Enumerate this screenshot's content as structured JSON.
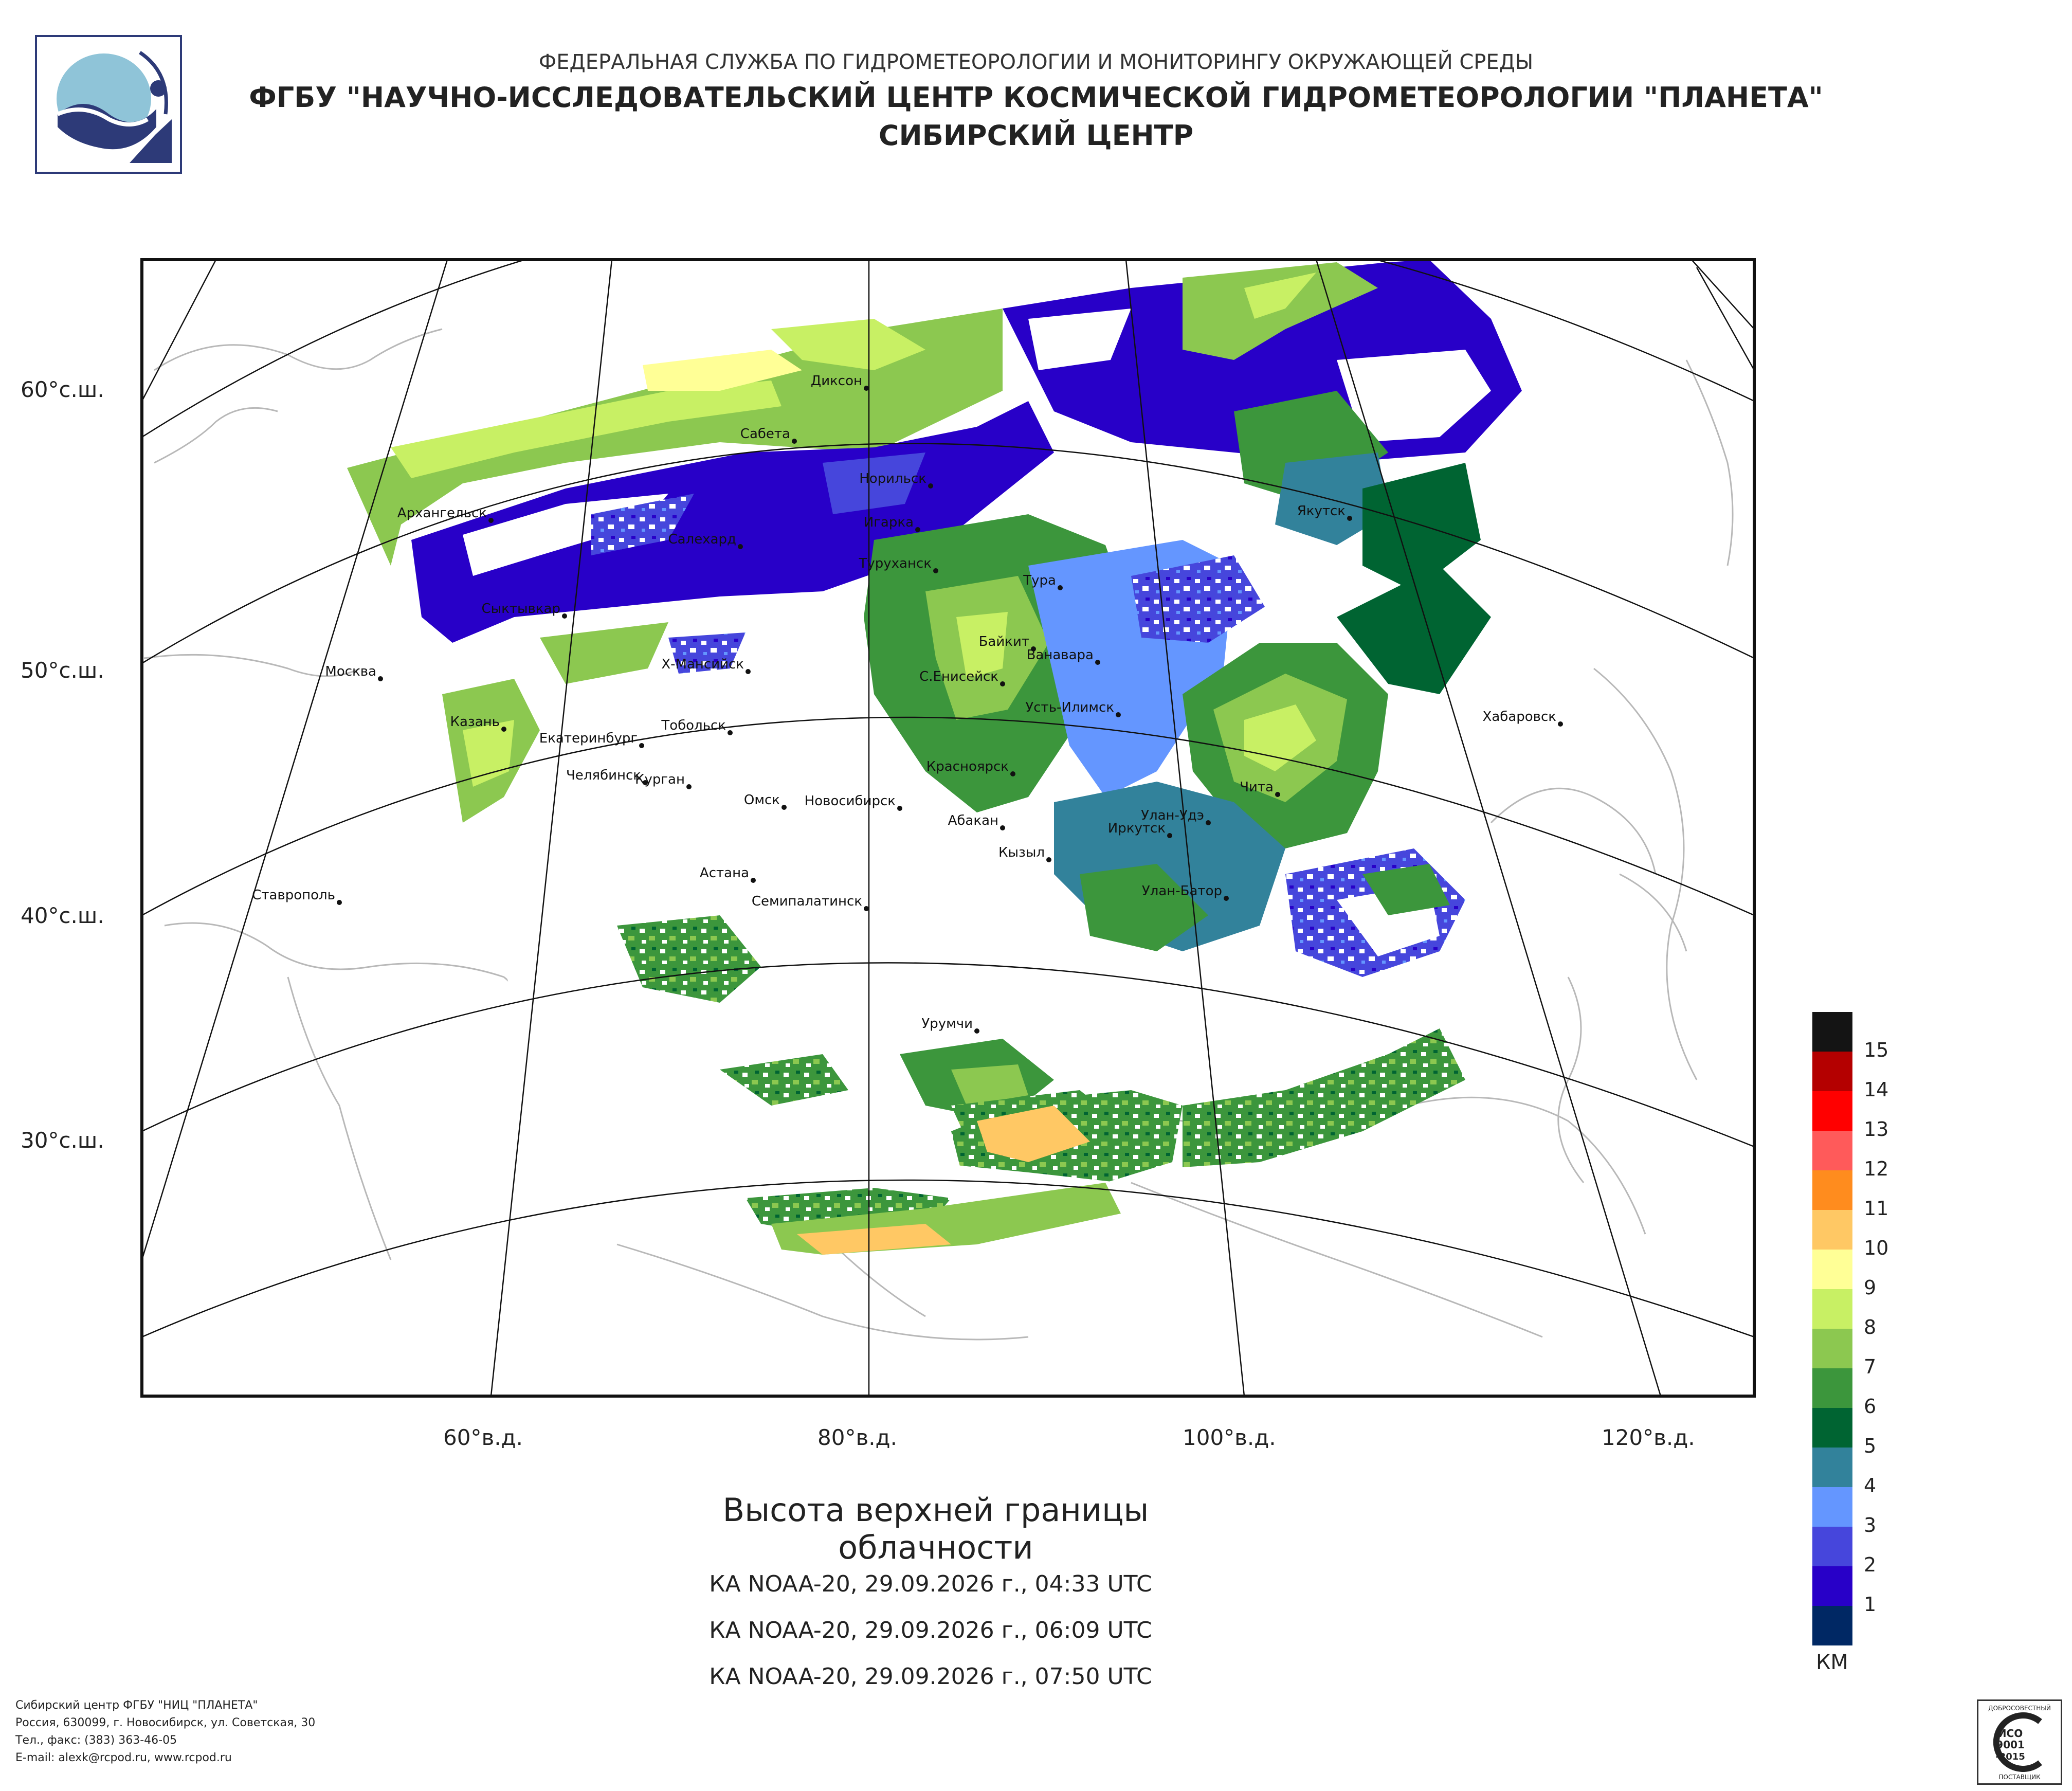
{
  "header": {
    "line1": "ФЕДЕРАЛЬНАЯ СЛУЖБА ПО ГИДРОМЕТЕОРОЛОГИИ И МОНИТОРИНГУ ОКРУЖАЮЩЕЙ СРЕДЫ",
    "line2": "ФГБУ \"НАУЧНО-ИССЛЕДОВАТЕЛЬСКИЙ ЦЕНТР КОСМИЧЕСКОЙ ГИДРОМЕТЕОРОЛОГИИ \"ПЛАНЕТА\"",
    "line3": "СИБИРСКИЙ ЦЕНТР"
  },
  "map": {
    "lat_labels": [
      "60°с.ш.",
      "50°с.ш.",
      "40°с.ш.",
      "30°с.ш."
    ],
    "lon_labels": [
      "60°в.д.",
      "80°в.д.",
      "100°в.д.",
      "120°в.д."
    ],
    "cities": [
      "Диксон",
      "Сабета",
      "Норильск",
      "Архангельск",
      "Салехард",
      "Игарка",
      "Туруханск",
      "Якутск",
      "Тура",
      "Сыктывкар",
      "Байкит",
      "Ванавара",
      "Москва",
      "Х-Мансийск",
      "С.Енисейск",
      "Усть-Илимск",
      "Хабаровск",
      "Казань",
      "Тобольск",
      "Екатеринбург",
      "Красноярск",
      "Челябинск",
      "Курган",
      "Омск",
      "Новосибирск",
      "Чита",
      "Абакан",
      "Улан-Удэ",
      "Иркутск",
      "Кызыл",
      "Астана",
      "Улан-Батор",
      "Ставрополь",
      "Семипалатинск",
      "Урумчи"
    ]
  },
  "legend": {
    "unit": "КМ",
    "levels": [
      "15",
      "14",
      "13",
      "12",
      "11",
      "10",
      "9",
      "8",
      "7",
      "6",
      "5",
      "4",
      "3",
      "2",
      "1"
    ],
    "colors": [
      "#141414",
      "#b40000",
      "#ff0000",
      "#ff5a5a",
      "#ff8c1e",
      "#ffc864",
      "#ffff96",
      "#c8f064",
      "#8cc850",
      "#3c963c",
      "#006432",
      "#32829b",
      "#6496ff",
      "#4646dc",
      "#2800c8",
      "#002864"
    ]
  },
  "title": "Высота верхней границы облачности",
  "passes": [
    "КА NOAA-20, 29.09.2026 г., 04:33 UTC",
    "КА NOAA-20, 29.09.2026 г., 06:09 UTC",
    "КА NOAA-20, 29.09.2026 г., 07:50 UTC"
  ],
  "footer": {
    "line1": "Сибирский центр ФГБУ \"НИЦ \"ПЛАНЕТА\"",
    "line2": "Россия, 630099, г. Новосибирск, ул. Советская, 30",
    "line3": "Тел., факс: (383) 363-46-05",
    "line4": "E-mail: alexk@rcpod.ru, www.rcpod.ru"
  },
  "iso_badge": {
    "top": "ДОБРОСОВЕСТНЫЙ",
    "line1": "ИСО",
    "line2": "9001",
    "line3": "-2015",
    "bottom": "ПОСТАВЩИК"
  }
}
